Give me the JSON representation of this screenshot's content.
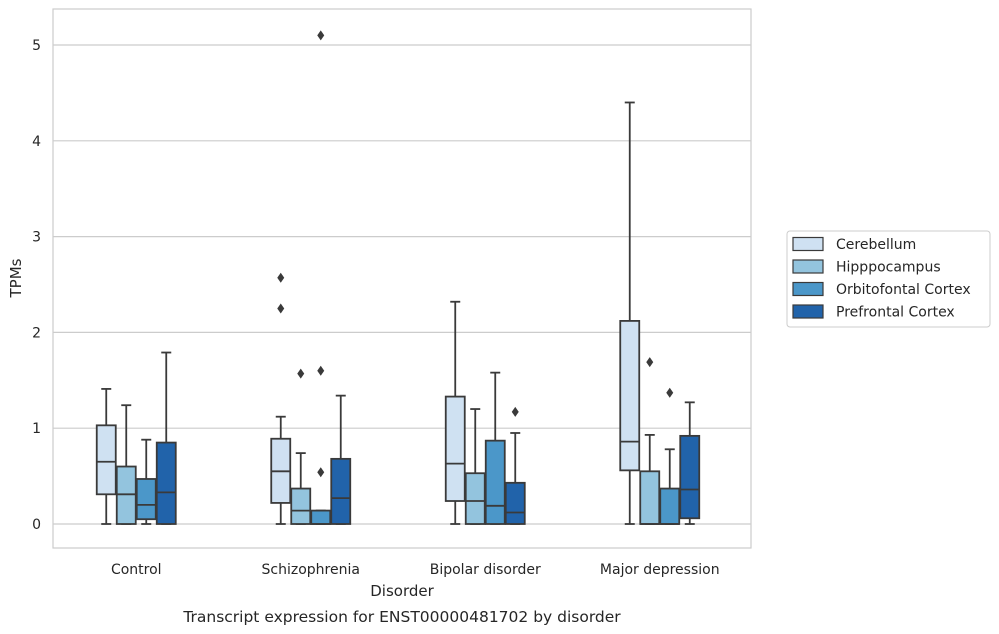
{
  "chart_data": {
    "type": "box",
    "caption": "Transcript expression for ENST00000481702 by disorder",
    "xlabel": "Disorder",
    "ylabel": "TPMs",
    "ylim": [
      -0.25,
      5.38
    ],
    "yticks": [
      0,
      1,
      2,
      3,
      4,
      5
    ],
    "grid": "horizontal",
    "legend_position": "right",
    "categories": [
      "Control",
      "Schizophrenia",
      "Bipolar disorder",
      "Major depression"
    ],
    "series": [
      {
        "name": "Cerebellum",
        "color": "#cfe1f2",
        "boxes": [
          {
            "whislo": 0.0,
            "q1": 0.31,
            "med": 0.65,
            "q3": 1.03,
            "whishi": 1.41,
            "fliers": []
          },
          {
            "whislo": 0.0,
            "q1": 0.22,
            "med": 0.55,
            "q3": 0.89,
            "whishi": 1.12,
            "fliers": [
              2.25,
              2.57
            ]
          },
          {
            "whislo": 0.0,
            "q1": 0.24,
            "med": 0.63,
            "q3": 1.33,
            "whishi": 2.32,
            "fliers": []
          },
          {
            "whislo": 0.0,
            "q1": 0.56,
            "med": 0.86,
            "q3": 2.12,
            "whishi": 4.4,
            "fliers": []
          }
        ]
      },
      {
        "name": "Hipppocampus",
        "color": "#93c4de",
        "boxes": [
          {
            "whislo": 0.0,
            "q1": 0.0,
            "med": 0.31,
            "q3": 0.6,
            "whishi": 1.24,
            "fliers": []
          },
          {
            "whislo": 0.0,
            "q1": 0.0,
            "med": 0.14,
            "q3": 0.37,
            "whishi": 0.74,
            "fliers": [
              1.57
            ]
          },
          {
            "whislo": 0.0,
            "q1": 0.0,
            "med": 0.24,
            "q3": 0.53,
            "whishi": 1.2,
            "fliers": []
          },
          {
            "whislo": 0.0,
            "q1": 0.0,
            "med": 0.0,
            "q3": 0.55,
            "whishi": 0.93,
            "fliers": [
              1.69
            ]
          }
        ]
      },
      {
        "name": "Orbitofontal Cortex",
        "color": "#4b97c9",
        "boxes": [
          {
            "whislo": 0.0,
            "q1": 0.05,
            "med": 0.2,
            "q3": 0.47,
            "whishi": 0.88,
            "fliers": []
          },
          {
            "whislo": 0.0,
            "q1": 0.0,
            "med": 0.0,
            "q3": 0.14,
            "whishi": 0.14,
            "fliers": [
              0.54,
              1.6,
              5.1
            ]
          },
          {
            "whislo": 0.0,
            "q1": 0.0,
            "med": 0.19,
            "q3": 0.87,
            "whishi": 1.58,
            "fliers": []
          },
          {
            "whislo": 0.0,
            "q1": 0.0,
            "med": 0.0,
            "q3": 0.37,
            "whishi": 0.78,
            "fliers": [
              1.37
            ]
          }
        ]
      },
      {
        "name": "Prefrontal Cortex",
        "color": "#2163aa",
        "boxes": [
          {
            "whislo": 0.0,
            "q1": 0.0,
            "med": 0.33,
            "q3": 0.85,
            "whishi": 1.79,
            "fliers": []
          },
          {
            "whislo": 0.0,
            "q1": 0.0,
            "med": 0.27,
            "q3": 0.68,
            "whishi": 1.34,
            "fliers": []
          },
          {
            "whislo": 0.0,
            "q1": 0.0,
            "med": 0.12,
            "q3": 0.43,
            "whishi": 0.95,
            "fliers": [
              1.17
            ]
          },
          {
            "whislo": 0.0,
            "q1": 0.06,
            "med": 0.36,
            "q3": 0.92,
            "whishi": 1.27,
            "fliers": []
          }
        ]
      }
    ]
  }
}
